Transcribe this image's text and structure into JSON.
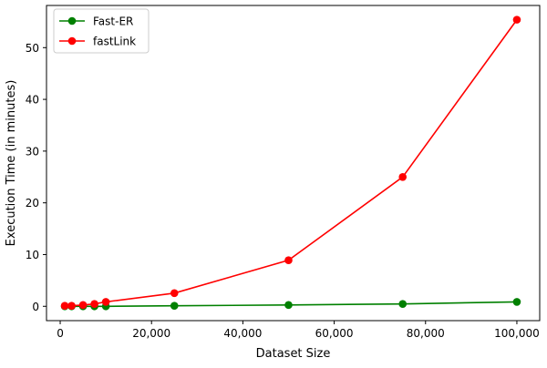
{
  "chart_data": {
    "type": "line",
    "title": "",
    "xlabel": "Dataset Size",
    "ylabel": "Execution Time (in minutes)",
    "xlim": [
      -3000,
      105000
    ],
    "ylim": [
      -2.77,
      58.15
    ],
    "xticks": [
      0,
      20000,
      40000,
      60000,
      80000,
      100000
    ],
    "xtick_labels": [
      "0",
      "20,000",
      "40,000",
      "60,000",
      "80,000",
      "100,000"
    ],
    "yticks": [
      0,
      10,
      20,
      30,
      40,
      50
    ],
    "ytick_labels": [
      "0",
      "10",
      "20",
      "30",
      "40",
      "50"
    ],
    "grid": false,
    "legend_position": "top-left",
    "series": [
      {
        "name": "Fast-ER",
        "color": "#008000",
        "x": [
          1000,
          2500,
          5000,
          7500,
          10000,
          25000,
          50000,
          75000,
          100000
        ],
        "y": [
          0.0,
          0.0,
          0.0,
          0.0,
          0.0,
          0.1,
          0.25,
          0.45,
          0.85
        ]
      },
      {
        "name": "fastLink",
        "color": "#ff0000",
        "x": [
          1000,
          2500,
          5000,
          7500,
          10000,
          25000,
          50000,
          75000,
          100000
        ],
        "y": [
          0.1,
          0.1,
          0.25,
          0.45,
          0.85,
          2.55,
          8.9,
          25.0,
          55.4
        ]
      }
    ]
  }
}
